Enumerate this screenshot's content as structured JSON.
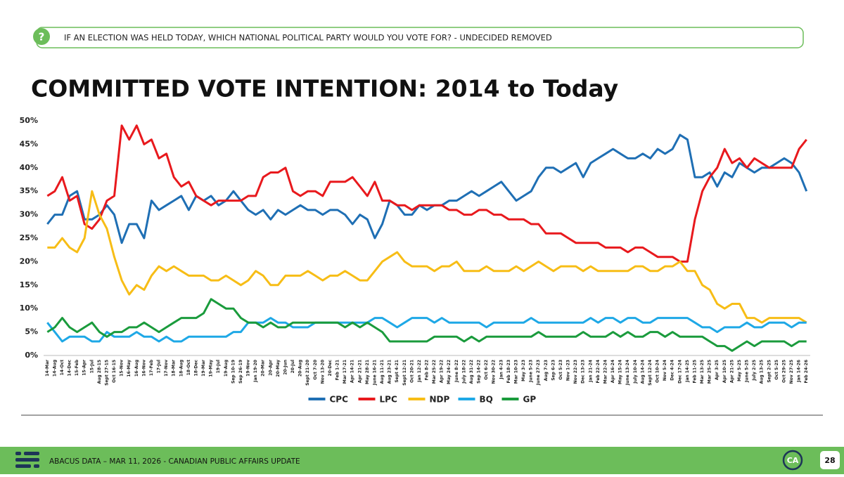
{
  "header": {
    "question": "IF AN ELECTION WAS HELD TODAY, WHICH NATIONAL POLITICAL PARTY WOULD YOU VOTE FOR? - UNDECIDED REMOVED",
    "icon": "?"
  },
  "chart_data": {
    "type": "line",
    "title": "COMMITTED VOTE INTENTION: 2014 to Today",
    "categories": [
      "14-Mar",
      "14-Aug",
      "14-Oct",
      "14-Dec",
      "15-Feb",
      "15-Apr",
      "15-Jul",
      "Aug 28-15",
      "Sept 27-15",
      "Oct 16-15",
      "15-Nov",
      "16-May",
      "16-Aug",
      "16-Nov",
      "17-Feb",
      "17-Jul",
      "17-Nov",
      "18-Mar",
      "18-Aug",
      "18-Oct",
      "18-Dec",
      "19-Mar",
      "19-May",
      "19-Jul",
      "19-Aug",
      "Sep 10-19",
      "Sep 26-19",
      "19-Nov",
      "Jan 19-20",
      "20-Mar",
      "20-Apr",
      "20-May",
      "20-Jun",
      "20-Jul",
      "20-Aug",
      "Sept 21-20",
      "Oct 7-20",
      "Nov 13-20",
      "20-Dec",
      "Feb 1-21",
      "Mar 17-21",
      "Apr 14-21",
      "Apr 21-21",
      "May 28-21",
      "June 16-21",
      "Aug 11-21",
      "Aug 23-21",
      "Sept 4-21",
      "Sept 12-21",
      "Oct 20-21",
      "Jan 12-22",
      "Feb 8-22",
      "Mar 25-22",
      "Apr 19-22",
      "May 24-22",
      "June 8-22",
      "July 18-22",
      "Aug 31-22",
      "Sep 14-22",
      "Oct 6-22",
      "Nov 30-22",
      "Jan 4-23",
      "Feb 18-23",
      "Mar 10-23",
      "May 3-23",
      "June 5-23",
      "June 27-23",
      "Aug 7-23",
      "Sep 6-23",
      "Oct 5-23",
      "Nov 1-23",
      "Nov 22-23",
      "Dec 13-23",
      "Jan 21-24",
      "Feb 22-24",
      "Mar 22-24",
      "Apr 16-24",
      "May 15-24",
      "June 13-24",
      "July 10-24",
      "Aug 14-24",
      "Sept 12-24",
      "Oct 10-24",
      "Nov 5-24",
      "Dec 4-24",
      "Dec 17-24",
      "Jan 14-25",
      "Feb 11-25",
      "Mar 13-25",
      "Mar 25-25",
      "Apr 3-25",
      "Apr 10-25",
      "Apr 21-25",
      "May 5-25",
      "June 5-25",
      "July 2-25",
      "Aug 13-25",
      "Sept 2-25",
      "Oct 5-25",
      "Oct 29-25",
      "Nov 27-25",
      "Jan 14-26",
      "Feb 24-26"
    ],
    "series": [
      {
        "name": "CPC",
        "color": "#1f6fb4",
        "values": [
          28,
          30,
          30,
          34,
          35,
          29,
          29,
          30,
          32,
          30,
          24,
          28,
          28,
          25,
          33,
          31,
          32,
          33,
          34,
          31,
          34,
          33,
          34,
          32,
          33,
          35,
          33,
          31,
          30,
          31,
          29,
          31,
          30,
          31,
          32,
          31,
          31,
          30,
          31,
          31,
          30,
          28,
          30,
          29,
          25,
          28,
          33,
          32,
          30,
          30,
          32,
          31,
          32,
          32,
          33,
          33,
          34,
          35,
          34,
          35,
          36,
          37,
          35,
          33,
          34,
          35,
          38,
          40,
          40,
          39,
          40,
          41,
          38,
          41,
          42,
          43,
          44,
          43,
          42,
          42,
          43,
          42,
          44,
          43,
          44,
          47,
          46,
          38,
          38,
          39,
          36,
          39,
          38,
          41,
          40,
          39,
          40,
          40,
          41,
          42,
          41,
          39,
          35
        ]
      },
      {
        "name": "LPC",
        "color": "#e8191d",
        "values": [
          34,
          35,
          38,
          33,
          34,
          28,
          27,
          29,
          33,
          34,
          49,
          46,
          49,
          45,
          46,
          42,
          43,
          38,
          36,
          37,
          34,
          33,
          32,
          33,
          33,
          33,
          33,
          34,
          34,
          38,
          39,
          39,
          40,
          35,
          34,
          35,
          35,
          34,
          37,
          37,
          37,
          38,
          36,
          34,
          37,
          33,
          33,
          32,
          32,
          31,
          32,
          32,
          32,
          32,
          31,
          31,
          30,
          30,
          31,
          31,
          30,
          30,
          29,
          29,
          29,
          28,
          28,
          26,
          26,
          26,
          25,
          24,
          24,
          24,
          24,
          23,
          23,
          23,
          22,
          23,
          23,
          22,
          21,
          21,
          21,
          20,
          20,
          29,
          35,
          38,
          40,
          44,
          41,
          42,
          40,
          42,
          41,
          40,
          40,
          40,
          40,
          44,
          46
        ]
      },
      {
        "name": "NDP",
        "color": "#f7bd16",
        "values": [
          23,
          23,
          25,
          23,
          22,
          25,
          35,
          30,
          27,
          21,
          16,
          13,
          15,
          14,
          17,
          19,
          18,
          19,
          18,
          17,
          17,
          17,
          16,
          16,
          17,
          16,
          15,
          16,
          18,
          17,
          15,
          15,
          17,
          17,
          17,
          18,
          17,
          16,
          17,
          17,
          18,
          17,
          16,
          16,
          18,
          20,
          21,
          22,
          20,
          19,
          19,
          19,
          18,
          19,
          19,
          20,
          18,
          18,
          18,
          19,
          18,
          18,
          18,
          19,
          18,
          19,
          20,
          19,
          18,
          19,
          19,
          19,
          18,
          19,
          18,
          18,
          18,
          18,
          18,
          19,
          19,
          18,
          18,
          19,
          19,
          20,
          18,
          18,
          15,
          14,
          11,
          10,
          11,
          11,
          8,
          8,
          7,
          8,
          8,
          8,
          8,
          8,
          7
        ]
      },
      {
        "name": "BQ",
        "color": "#1ea8e6",
        "values": [
          7,
          5,
          3,
          4,
          4,
          4,
          3,
          3,
          5,
          4,
          4,
          4,
          5,
          4,
          4,
          3,
          4,
          3,
          3,
          4,
          4,
          4,
          4,
          4,
          4,
          5,
          5,
          7,
          7,
          7,
          8,
          7,
          7,
          6,
          6,
          6,
          7,
          7,
          7,
          7,
          7,
          7,
          7,
          7,
          8,
          8,
          7,
          6,
          7,
          8,
          8,
          8,
          7,
          8,
          7,
          7,
          7,
          7,
          7,
          6,
          7,
          7,
          7,
          7,
          7,
          8,
          7,
          7,
          7,
          7,
          7,
          7,
          7,
          8,
          7,
          8,
          8,
          7,
          8,
          8,
          7,
          7,
          8,
          8,
          8,
          8,
          8,
          7,
          6,
          6,
          5,
          6,
          6,
          6,
          7,
          6,
          6,
          7,
          7,
          7,
          6,
          7,
          7
        ]
      },
      {
        "name": "GP",
        "color": "#1a9b3c",
        "values": [
          5,
          6,
          8,
          6,
          5,
          6,
          7,
          5,
          4,
          5,
          5,
          6,
          6,
          7,
          6,
          5,
          6,
          7,
          8,
          8,
          8,
          9,
          12,
          11,
          10,
          10,
          8,
          7,
          7,
          6,
          7,
          6,
          6,
          7,
          7,
          7,
          7,
          7,
          7,
          7,
          6,
          7,
          6,
          7,
          6,
          5,
          3,
          3,
          3,
          3,
          3,
          3,
          4,
          4,
          4,
          4,
          3,
          4,
          3,
          4,
          4,
          4,
          4,
          4,
          4,
          4,
          5,
          4,
          4,
          4,
          4,
          4,
          5,
          4,
          4,
          4,
          5,
          4,
          5,
          4,
          4,
          5,
          5,
          4,
          5,
          4,
          4,
          4,
          4,
          3,
          2,
          2,
          1,
          2,
          3,
          2,
          3,
          3,
          3,
          3,
          2,
          3,
          3
        ]
      }
    ],
    "ylim": [
      0,
      50
    ],
    "yticks": [
      {
        "value": 0,
        "label": "0%"
      },
      {
        "value": 5,
        "label": "5%"
      },
      {
        "value": 10,
        "label": "10%"
      },
      {
        "value": 15,
        "label": "15%"
      },
      {
        "value": 20,
        "label": "20%"
      },
      {
        "value": 25,
        "label": "25%"
      },
      {
        "value": 30,
        "label": "30%"
      },
      {
        "value": 35,
        "label": "35%"
      },
      {
        "value": 40,
        "label": "40%"
      },
      {
        "value": 45,
        "label": "45%"
      },
      {
        "value": 50,
        "label": "50%"
      }
    ],
    "grid": false,
    "legend": "bottom"
  },
  "footer": {
    "text": "ABACUS DATA – MAR 11, 2026 - CANADIAN PUBLIC AFFAIRS UPDATE",
    "logo": "CA",
    "page": "28"
  }
}
